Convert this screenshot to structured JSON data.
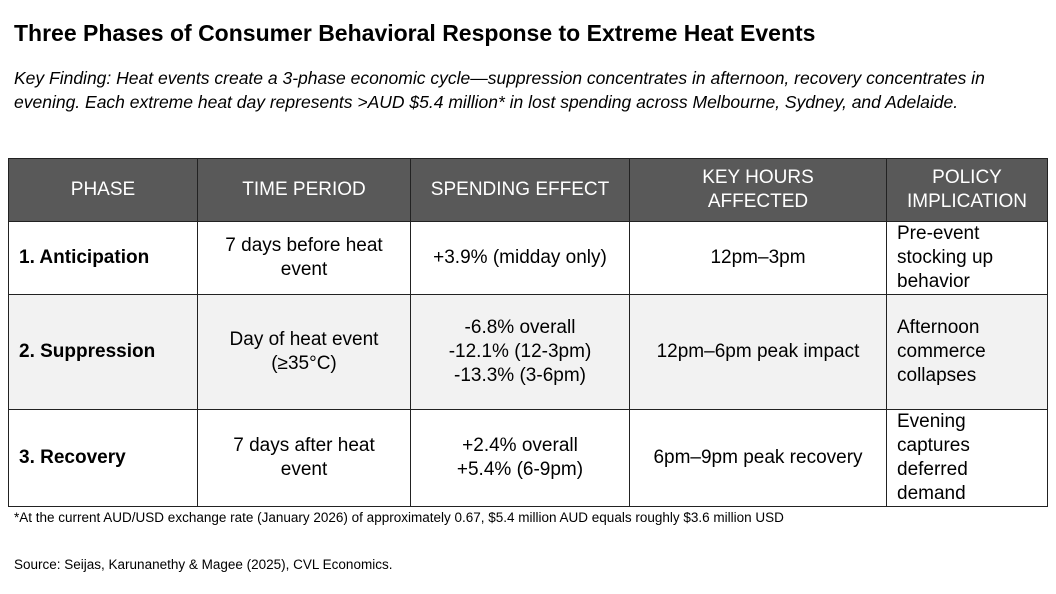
{
  "title": "Three Phases of Consumer Behavioral Response to Extreme Heat Events",
  "key_finding": "Key Finding: Heat events create a 3-phase economic cycle—suppression concentrates in afternoon, recovery concentrates in evening. Each extreme heat day represents >AUD $5.4 million* in lost spending across Melbourne, Sydney, and Adelaide.",
  "table": {
    "headers": [
      "PHASE",
      "TIME PERIOD",
      "SPENDING EFFECT",
      "KEY HOURS AFFECTED",
      "POLICY IMPLICATION"
    ],
    "rows": [
      {
        "phase": "1. Anticipation",
        "time": "7 days before heat event",
        "effect": [
          "+3.9% (midday only)"
        ],
        "hours": "12pm–3pm",
        "policy": "Pre-event stocking up behavior"
      },
      {
        "phase": "2. Suppression",
        "time": "Day of heat event (≥35°C)",
        "effect": [
          "-6.8% overall",
          "-12.1% (12-3pm)",
          "-13.3% (3-6pm)"
        ],
        "hours": "12pm–6pm peak impact",
        "policy": "Afternoon commerce collapses"
      },
      {
        "phase": "3. Recovery",
        "time": "7 days after heat event",
        "effect": [
          "+2.4% overall",
          "+5.4% (6-9pm)"
        ],
        "hours": "6pm–9pm peak recovery",
        "policy": "Evening captures deferred demand"
      }
    ]
  },
  "footnote": "*At the current AUD/USD exchange rate (January 2026) of approximately 0.67, $5.4 million AUD equals roughly $3.6 million USD",
  "source": "Source: Seijas, Karunanethy & Magee (2025), CVL Economics.",
  "colors": {
    "header_bg": "#595959",
    "alt_row_bg": "#f2f2f2"
  }
}
